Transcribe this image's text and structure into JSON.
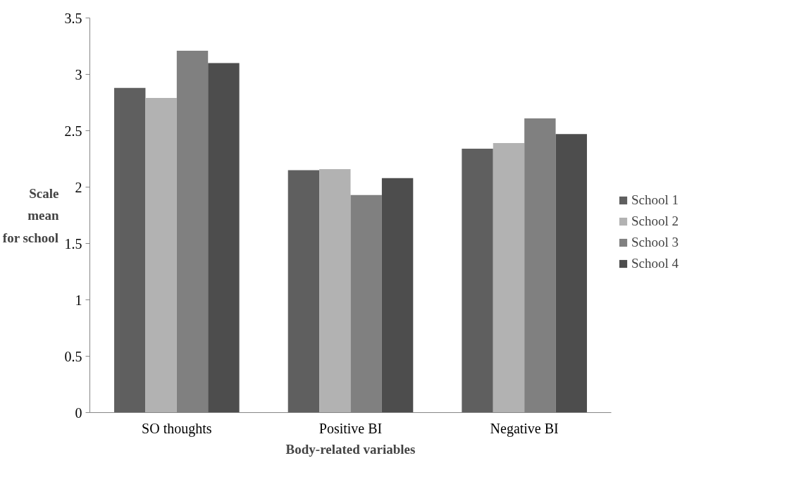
{
  "chart_data": {
    "type": "bar",
    "xlabel": "Body-related variables",
    "ylabel": "Scale mean for school",
    "categories": [
      "SO thoughts",
      "Positive BI",
      "Negative BI"
    ],
    "series": [
      {
        "name": "School 1",
        "color": "#5f5f5f",
        "values": [
          2.88,
          2.15,
          2.34
        ]
      },
      {
        "name": "School 2",
        "color": "#b2b2b2",
        "values": [
          2.79,
          2.16,
          2.39
        ]
      },
      {
        "name": "School 3",
        "color": "#808080",
        "values": [
          3.21,
          1.93,
          2.61
        ]
      },
      {
        "name": "School 4",
        "color": "#4d4d4d",
        "values": [
          3.1,
          2.08,
          2.47
        ]
      }
    ],
    "ylim": [
      0,
      3.5
    ],
    "yticks": [
      0,
      0.5,
      1,
      1.5,
      2,
      2.5,
      3,
      3.5
    ],
    "grid": false,
    "legend": "right"
  }
}
